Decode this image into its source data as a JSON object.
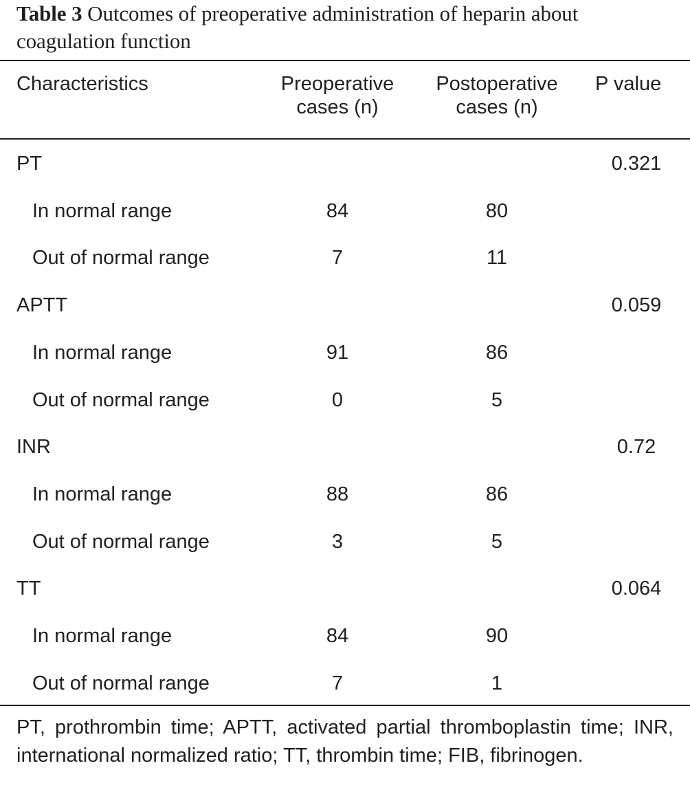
{
  "caption": {
    "label": "Table 3",
    "text": "Outcomes of preoperative administration of heparin about coagulation function"
  },
  "headers": {
    "characteristics": "Characteristics",
    "preoperative_line1": "Preoperative",
    "preoperative_line2": "cases (n)",
    "postoperative_line1": "Postoperative",
    "postoperative_line2": "cases (n)",
    "p_value": "P value"
  },
  "rows": [
    {
      "label": "PT",
      "pre": "",
      "post": "",
      "p": "0.321"
    },
    {
      "label": "In normal range",
      "pre": "84",
      "post": "80",
      "p": ""
    },
    {
      "label": "Out of normal range",
      "pre": "7",
      "post": "11",
      "p": ""
    },
    {
      "label": "APTT",
      "pre": "",
      "post": "",
      "p": "0.059"
    },
    {
      "label": "In normal range",
      "pre": "91",
      "post": "86",
      "p": ""
    },
    {
      "label": "Out of normal range",
      "pre": "0",
      "post": "5",
      "p": ""
    },
    {
      "label": "INR",
      "pre": "",
      "post": "",
      "p": "0.72"
    },
    {
      "label": "In normal range",
      "pre": "88",
      "post": "86",
      "p": ""
    },
    {
      "label": "Out of normal range",
      "pre": "3",
      "post": "5",
      "p": ""
    },
    {
      "label": "TT",
      "pre": "",
      "post": "",
      "p": "0.064"
    },
    {
      "label": "In normal range",
      "pre": "84",
      "post": "90",
      "p": ""
    },
    {
      "label": "Out of normal range",
      "pre": "7",
      "post": "1",
      "p": ""
    }
  ],
  "footnote": "PT, prothrombin time; APTT, activated partial thromboplastin time; INR, international normalized ratio; TT, thrombin time; FIB, fibrinogen."
}
